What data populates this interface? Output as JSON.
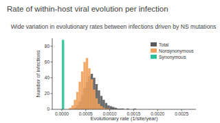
{
  "chart_data": {
    "type": "histogram",
    "title": "Rate of within-host viral evolution per infection",
    "subtitle": "Wide variation in evolutionary rates between infections driven by NS mutations",
    "x_label": "Evolutionary rate (1/site/year)",
    "y_label": "Number of infections",
    "bins": [
      0,
      5e-05,
      0.0001,
      0.00015,
      0.0002,
      0.00025,
      0.0003,
      0.00035,
      0.0004,
      0.00045,
      0.0005,
      0.00055,
      0.0006,
      0.00065,
      0.0007,
      0.00075,
      0.0008,
      0.00085,
      0.0009,
      0.00095,
      0.001,
      0.00105,
      0.0011,
      0.00115,
      0.0012,
      0.00125,
      0.0013,
      0.00135,
      0.0014,
      0.00145,
      0.0015,
      0.00155,
      0.0016
    ],
    "series": [
      {
        "name": "Total",
        "color": "#5a5a5a",
        "values": [
          0,
          0,
          0,
          0,
          0,
          2,
          5,
          10,
          18,
          27,
          35,
          42,
          45,
          40,
          32,
          24,
          17,
          12,
          8,
          5,
          4,
          3,
          2,
          1,
          1,
          1,
          0,
          1,
          0,
          0,
          1,
          0
        ]
      },
      {
        "name": "Nonsynonymous",
        "color": "#f0a05a",
        "values": [
          0,
          0,
          0,
          2,
          5,
          12,
          22,
          35,
          48,
          60,
          65,
          52,
          38,
          25,
          14,
          7,
          4,
          2,
          1,
          1,
          0,
          0,
          0,
          0,
          0,
          0,
          0,
          0,
          0,
          0,
          0,
          0
        ]
      },
      {
        "name": "Synonymous",
        "color": "#2bbf9a",
        "values": [
          88,
          0,
          0,
          0,
          0,
          0,
          0,
          0,
          0,
          0,
          0,
          0,
          0,
          0,
          0,
          0,
          0,
          0,
          0,
          0,
          0,
          0,
          0,
          0,
          0,
          0,
          0,
          0,
          0,
          0,
          0,
          0
        ]
      }
    ],
    "xlim": [
      -0.0002,
      0.0028
    ],
    "xticks": [
      {
        "value": 0,
        "label": "0.0000"
      },
      0.0005,
      {
        "value": 0.001,
        "label": "0.0010"
      },
      0.0015,
      {
        "value": 0.002,
        "label": "0.0020"
      },
      0.0025
    ],
    "ylim": [
      0,
      90
    ],
    "yticks": [
      0,
      20,
      40,
      60,
      80
    ],
    "grid": false,
    "legend": "upper right"
  }
}
